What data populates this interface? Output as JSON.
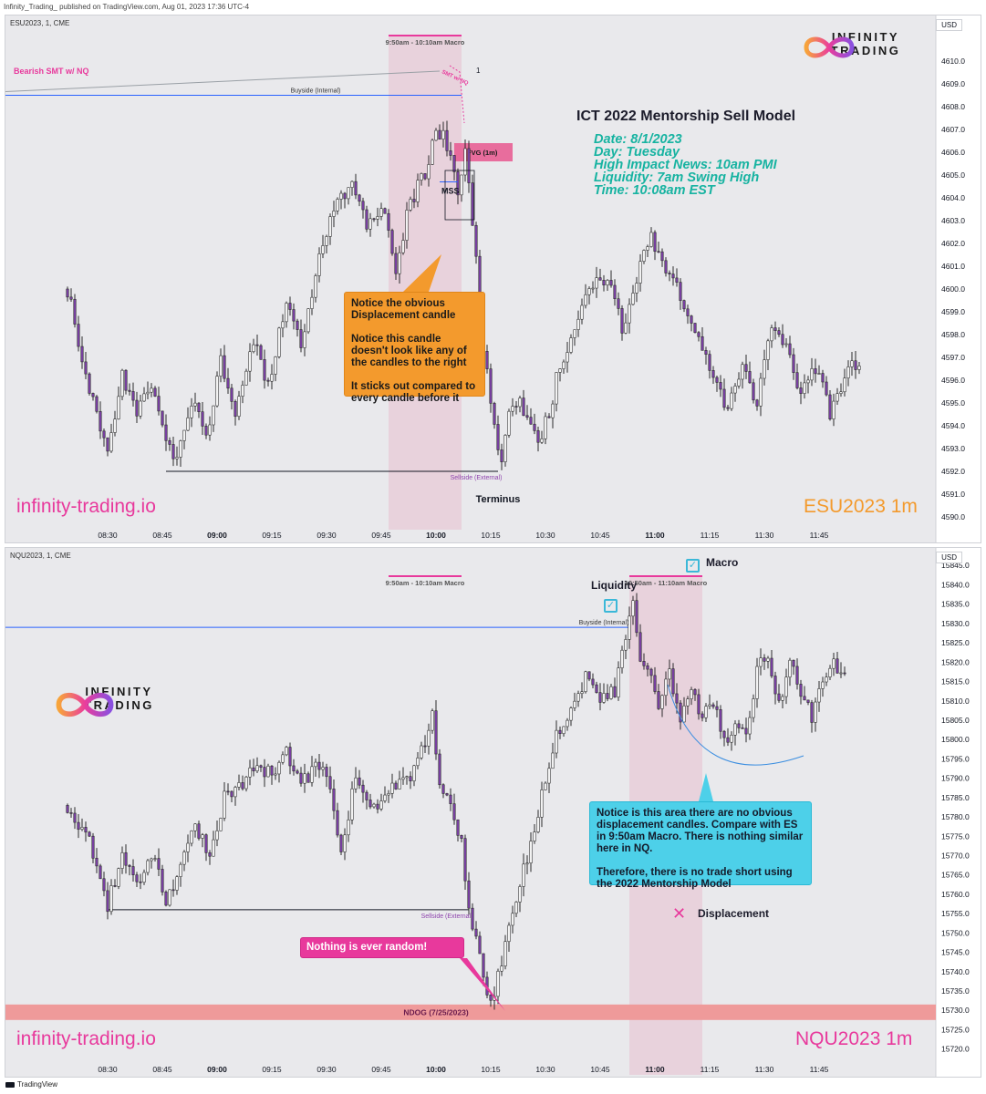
{
  "header": {
    "publisher": "Infinity_Trading_ published on TradingView.com, Aug 01, 2023 17:36 UTC-4"
  },
  "footer": {
    "brand": "TradingView"
  },
  "chart_data": [
    {
      "id": "es",
      "type": "candlestick",
      "symbol_line": "ESU2023, 1, CME",
      "currency": "USD",
      "symbol_big": "ESU2023   1m",
      "site": "infinity-trading.io",
      "ylim": [
        4589.6,
        4611.2
      ],
      "yticks": [
        4590,
        4591,
        4592,
        4593,
        4594,
        4595,
        4596,
        4597,
        4598,
        4599,
        4600,
        4601,
        4602,
        4603,
        4604,
        4605,
        4606,
        4607,
        4608,
        4609,
        4610
      ],
      "x_range": [
        -28,
        227
      ],
      "xticks": [
        {
          "t": 0,
          "label": "08:30"
        },
        {
          "t": 15,
          "label": "08:45"
        },
        {
          "t": 30,
          "label": "09:00",
          "bold": true
        },
        {
          "t": 45,
          "label": "09:15"
        },
        {
          "t": 60,
          "label": "09:30"
        },
        {
          "t": 75,
          "label": "09:45"
        },
        {
          "t": 90,
          "label": "10:00",
          "bold": true
        },
        {
          "t": 105,
          "label": "10:15"
        },
        {
          "t": 120,
          "label": "10:30"
        },
        {
          "t": 135,
          "label": "10:45"
        },
        {
          "t": 150,
          "label": "11:00",
          "bold": true
        },
        {
          "t": 165,
          "label": "11:15"
        },
        {
          "t": 180,
          "label": "11:30"
        },
        {
          "t": 195,
          "label": "11:45"
        }
      ],
      "anchors": [
        [
          -11,
          4600.0
        ],
        [
          -6,
          4596.0
        ],
        [
          0,
          4593.0
        ],
        [
          4,
          4596.2
        ],
        [
          8,
          4594.8
        ],
        [
          12,
          4595.8
        ],
        [
          16,
          4593.6
        ],
        [
          18,
          4592.2
        ],
        [
          23,
          4595.0
        ],
        [
          27,
          4593.6
        ],
        [
          31,
          4596.8
        ],
        [
          35,
          4594.4
        ],
        [
          40,
          4597.8
        ],
        [
          44,
          4595.6
        ],
        [
          49,
          4599.5
        ],
        [
          53,
          4597.6
        ],
        [
          58,
          4601.6
        ],
        [
          63,
          4603.8
        ],
        [
          67,
          4604.4
        ],
        [
          71,
          4602.8
        ],
        [
          75,
          4603.6
        ],
        [
          79,
          4601.0
        ],
        [
          83,
          4603.8
        ],
        [
          87,
          4605.2
        ],
        [
          90,
          4606.8
        ],
        [
          92,
          4606.8
        ],
        [
          94,
          4606.0
        ],
        [
          96,
          4604.2
        ],
        [
          98,
          4606.2
        ],
        [
          100,
          4603.0
        ],
        [
          103,
          4597.4
        ],
        [
          106,
          4594.0
        ],
        [
          108,
          4592.6
        ],
        [
          110,
          4595.0
        ],
        [
          114,
          4594.8
        ],
        [
          118,
          4593.4
        ],
        [
          121,
          4594.6
        ],
        [
          124,
          4596.8
        ],
        [
          128,
          4598.2
        ],
        [
          132,
          4599.8
        ],
        [
          137,
          4600.6
        ],
        [
          141,
          4598.2
        ],
        [
          145,
          4600.6
        ],
        [
          149,
          4602.2
        ],
        [
          153,
          4601.0
        ],
        [
          157,
          4599.6
        ],
        [
          161,
          4598.2
        ],
        [
          166,
          4596.2
        ],
        [
          170,
          4594.6
        ],
        [
          174,
          4596.8
        ],
        [
          178,
          4595.0
        ],
        [
          182,
          4598.2
        ],
        [
          186,
          4597.4
        ],
        [
          190,
          4595.2
        ],
        [
          194,
          4596.6
        ],
        [
          198,
          4594.6
        ],
        [
          202,
          4596.2
        ],
        [
          206,
          4597.0
        ]
      ],
      "levels": [
        {
          "price": 4608.5,
          "t1": -28,
          "t2": 97,
          "color": "#2962ff",
          "label": "Buyside (Internal)",
          "label_t": 57
        },
        {
          "price": 4592.0,
          "t1": 16,
          "t2": 107,
          "color": "#131722",
          "label": "Sellside (External)",
          "label_t": 101
        }
      ],
      "macros": [
        {
          "t1": 77,
          "t2": 97,
          "label": "9:50am - 10:10am Macro"
        }
      ],
      "fvg": {
        "t1": 95,
        "t2": 111,
        "p1": 4605.6,
        "p2": 4606.4,
        "label": "FVG (1m)"
      },
      "smt": {
        "label": "Bearish SMT w/ NQ",
        "label_small": "SMT w/ NQ",
        "num": "1",
        "p1": 4608.5,
        "p2": 4609.4,
        "t1": -28,
        "t2": 91
      },
      "mss": {
        "label": "MSS",
        "price": 4604.7
      },
      "annotations": [
        {
          "label": "Terminus",
          "t": 107,
          "p": 4590.8
        }
      ],
      "title": "ICT 2022 Mentorship Sell Model",
      "info_lines": [
        "Date: 8/1/2023",
        "Day: Tuesday",
        "High Impact News: 10am PMI",
        "Liquidity: 7am Swing High",
        "Time: 10:08am EST"
      ],
      "callout": "Notice the obvious\nDisplacement candle\n\nNotice this candle\ndoesn't look like any of\nthe candles to the right\n\nIt sticks out compared to\nevery candle before it",
      "symbol_color": "#f39a2d"
    },
    {
      "id": "nq",
      "type": "candlestick",
      "symbol_line": "NQU2023, 1, CME",
      "currency": "USD",
      "symbol_big": "NQU2023   1m",
      "site": "infinity-trading.io",
      "ylim": [
        15718.5,
        15846.0
      ],
      "yticks": [
        15720,
        15725,
        15730,
        15735,
        15740,
        15745,
        15750,
        15755,
        15760,
        15765,
        15770,
        15775,
        15780,
        15785,
        15790,
        15795,
        15800,
        15805,
        15810,
        15815,
        15820,
        15825,
        15830,
        15835,
        15840,
        15845
      ],
      "x_range": [
        -28,
        227
      ],
      "xticks": [
        {
          "t": 0,
          "label": "08:30"
        },
        {
          "t": 15,
          "label": "08:45"
        },
        {
          "t": 30,
          "label": "09:00",
          "bold": true
        },
        {
          "t": 45,
          "label": "09:15"
        },
        {
          "t": 60,
          "label": "09:30"
        },
        {
          "t": 75,
          "label": "09:45"
        },
        {
          "t": 90,
          "label": "10:00",
          "bold": true
        },
        {
          "t": 105,
          "label": "10:15"
        },
        {
          "t": 120,
          "label": "10:30"
        },
        {
          "t": 135,
          "label": "10:45"
        },
        {
          "t": 150,
          "label": "11:00",
          "bold": true
        },
        {
          "t": 165,
          "label": "11:15"
        },
        {
          "t": 180,
          "label": "11:30"
        },
        {
          "t": 195,
          "label": "11:45"
        }
      ],
      "anchors": [
        [
          -11,
          15783
        ],
        [
          -5,
          15773
        ],
        [
          0,
          15757
        ],
        [
          4,
          15770
        ],
        [
          9,
          15762
        ],
        [
          13,
          15771
        ],
        [
          16,
          15757
        ],
        [
          20,
          15768
        ],
        [
          24,
          15778
        ],
        [
          28,
          15770
        ],
        [
          32,
          15785
        ],
        [
          37,
          15789
        ],
        [
          41,
          15795
        ],
        [
          45,
          15790
        ],
        [
          49,
          15798
        ],
        [
          53,
          15787
        ],
        [
          57,
          15795
        ],
        [
          61,
          15788
        ],
        [
          64,
          15772
        ],
        [
          68,
          15790
        ],
        [
          72,
          15781
        ],
        [
          76,
          15785
        ],
        [
          80,
          15789
        ],
        [
          84,
          15792
        ],
        [
          87,
          15800
        ],
        [
          89,
          15806
        ],
        [
          91,
          15788
        ],
        [
          94,
          15782
        ],
        [
          97,
          15774
        ],
        [
          99,
          15755
        ],
        [
          101,
          15748
        ],
        [
          103,
          15738
        ],
        [
          105,
          15733
        ],
        [
          107,
          15738
        ],
        [
          110,
          15752
        ],
        [
          113,
          15763
        ],
        [
          117,
          15777
        ],
        [
          120,
          15790
        ],
        [
          123,
          15802
        ],
        [
          127,
          15808
        ],
        [
          131,
          15816
        ],
        [
          135,
          15811
        ],
        [
          139,
          15812
        ],
        [
          142,
          15828
        ],
        [
          144,
          15834
        ],
        [
          146,
          15822
        ],
        [
          149,
          15817
        ],
        [
          151,
          15810
        ],
        [
          154,
          15818
        ],
        [
          157,
          15806
        ],
        [
          160,
          15812
        ],
        [
          163,
          15805
        ],
        [
          166,
          15810
        ],
        [
          169,
          15799
        ],
        [
          172,
          15803
        ],
        [
          175,
          15801
        ],
        [
          178,
          15818
        ],
        [
          181,
          15822
        ],
        [
          184,
          15810
        ],
        [
          187,
          15819
        ],
        [
          190,
          15813
        ],
        [
          193,
          15805
        ],
        [
          196,
          15815
        ],
        [
          199,
          15819
        ],
        [
          202,
          15817
        ]
      ],
      "levels": [
        {
          "price": 15829.0,
          "t1": -28,
          "t2": 143,
          "color": "#2962ff",
          "label": "Buyside (Internal)",
          "label_t": 136
        },
        {
          "price": 15756.0,
          "t1": 0,
          "t2": 99,
          "color": "#131722",
          "label": "Sellside (External)",
          "label_t": 93
        }
      ],
      "macros": [
        {
          "t1": 77,
          "t2": 97,
          "label": "9:50am - 10:10am Macro",
          "line_only": true
        },
        {
          "t1": 143,
          "t2": 163,
          "label": "10:50am - 11:10am Macro"
        }
      ],
      "ndog": {
        "p1": 15727.5,
        "p2": 15731.5,
        "label": "NDOG (7/25/2023)"
      },
      "liquidity_label": "Liquidity",
      "macro_label": "Macro",
      "displacement_label": "Displacement",
      "callout": "Notice is this area there are no obvious\ndisplacement candles. Compare with ES\nin 9:50am Macro. There is nothing similar\nhere in NQ.\n\nTherefore, there is no trade short using\nthe 2022 Mentorship Model",
      "callout_pink": "Nothing is ever random!",
      "logo_text": "INFINITY TRADING",
      "symbol_color": "#e8399c"
    }
  ]
}
